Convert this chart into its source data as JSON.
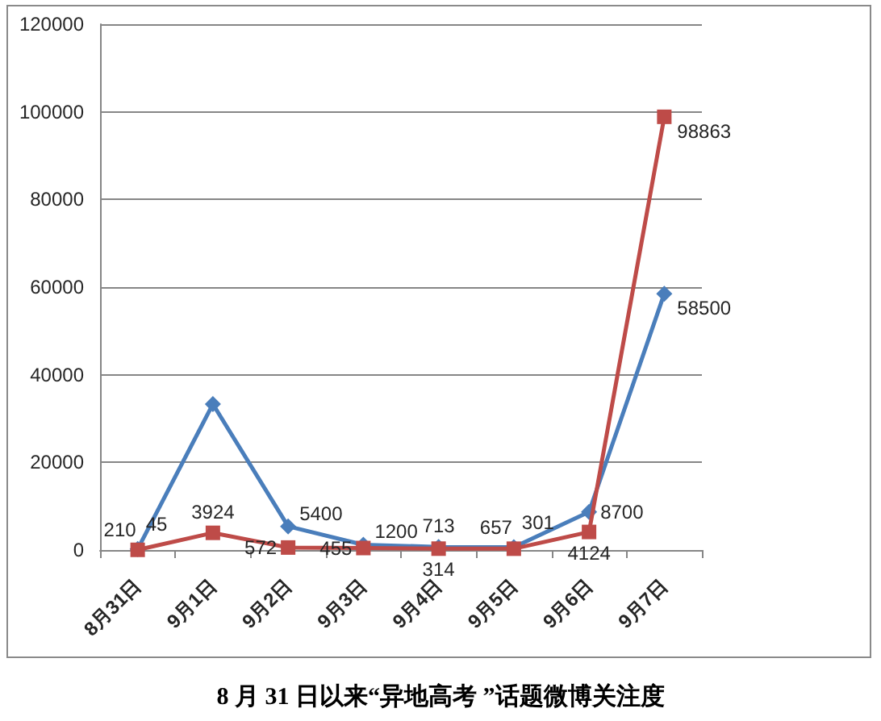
{
  "chart_data": {
    "type": "line",
    "title": "8 月 31 日以来“异地高考 ”话题微博关注度",
    "categories": [
      "8月31日",
      "9月1日",
      "9月2日",
      "9月3日",
      "9月4日",
      "9月5日",
      "9月6日",
      "9月7日"
    ],
    "series": [
      {
        "color": "#4a7ebb",
        "marker": "diamond",
        "values": [
          210,
          33300,
          5400,
          1200,
          713,
          657,
          8700,
          58500
        ],
        "value_labels": [
          "210",
          null,
          "5400",
          "1200",
          "713",
          "657",
          "8700",
          "58500"
        ]
      },
      {
        "color": "#be4b48",
        "marker": "square",
        "values": [
          45,
          3924,
          572,
          455,
          314,
          301,
          4124,
          98863
        ],
        "value_labels": [
          "45",
          "3924",
          "572",
          "455",
          "314",
          "301",
          "4124",
          "98863"
        ]
      }
    ],
    "ylim": [
      0,
      120000
    ],
    "yticks": [
      0,
      20000,
      40000,
      60000,
      80000,
      100000,
      120000
    ],
    "grid": "y"
  }
}
